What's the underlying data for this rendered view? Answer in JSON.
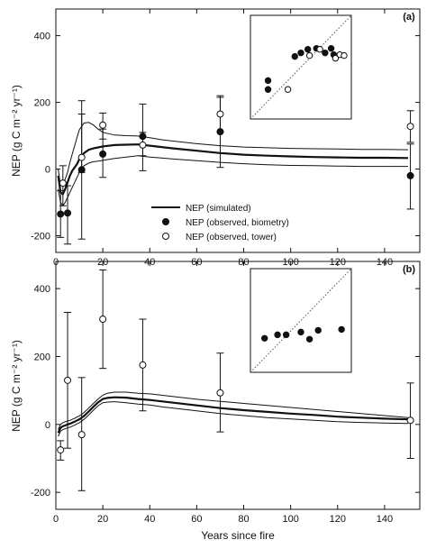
{
  "figure": {
    "xlabel": "Years since fire"
  },
  "chart_data": [
    {
      "type": "line",
      "panel_label": "(a)",
      "ylabel": "NEP (g C m⁻² yr⁻¹)",
      "xlim": [
        0,
        155
      ],
      "ylim": [
        -250,
        480
      ],
      "xticks": [
        0,
        20,
        40,
        60,
        80,
        100,
        120,
        140
      ],
      "yticks": [
        -200,
        0,
        200,
        400
      ],
      "legend": {
        "position": "lower-center",
        "entries": [
          {
            "label": "NEP (simulated)",
            "marker": "line"
          },
          {
            "label": "NEP (observed, biometry)",
            "marker": "filled-circle"
          },
          {
            "label": "NEP (observed, tower)",
            "marker": "open-circle"
          }
        ]
      },
      "series": [
        {
          "name": "NEP (simulated)",
          "style": "line",
          "x": [
            1,
            2,
            3,
            4,
            5,
            6,
            7,
            8,
            9,
            10,
            12,
            14,
            16,
            18,
            20,
            25,
            30,
            35,
            40,
            45,
            50,
            60,
            70,
            80,
            90,
            100,
            110,
            120,
            130,
            140,
            150
          ],
          "mean": [
            -20,
            -70,
            -75,
            -60,
            -40,
            -20,
            -5,
            5,
            15,
            30,
            48,
            58,
            62,
            65,
            68,
            72,
            73,
            74,
            70,
            66,
            62,
            55,
            48,
            43,
            40,
            38,
            36,
            35,
            34,
            34,
            33
          ],
          "upper": [
            0,
            -50,
            -50,
            -30,
            -10,
            20,
            45,
            70,
            95,
            118,
            138,
            140,
            132,
            120,
            110,
            102,
            100,
            99,
            94,
            88,
            84,
            76,
            70,
            66,
            64,
            62,
            61,
            60,
            59,
            59,
            58
          ],
          "lower": [
            -60,
            -100,
            -110,
            -100,
            -85,
            -70,
            -55,
            -40,
            -25,
            -10,
            10,
            18,
            22,
            24,
            26,
            32,
            36,
            40,
            36,
            33,
            30,
            25,
            20,
            16,
            13,
            11,
            10,
            9,
            8,
            8,
            8
          ]
        },
        {
          "name": "NEP (observed, biometry)",
          "style": "filled-circle",
          "points": [
            {
              "x": 2,
              "y": -135,
              "lo": -205,
              "hi": -65
            },
            {
              "x": 5,
              "y": -132,
              "lo": -225,
              "hi": -50
            },
            {
              "x": 11,
              "y": -2,
              "lo": -210,
              "hi": 165
            },
            {
              "x": 20,
              "y": 45,
              "lo": -25,
              "hi": 120
            },
            {
              "x": 37,
              "y": 98,
              "lo": -5,
              "hi": 195
            },
            {
              "x": 70,
              "y": 112,
              "lo": 5,
              "hi": 215
            },
            {
              "x": 151,
              "y": -20,
              "lo": -120,
              "hi": 75
            }
          ]
        },
        {
          "name": "NEP (observed, tower)",
          "style": "open-circle",
          "points": [
            {
              "x": 3,
              "y": -42,
              "lo": -110,
              "hi": 10
            },
            {
              "x": 11,
              "y": 35,
              "lo": -10,
              "hi": 205
            },
            {
              "x": 20,
              "y": 132,
              "lo": 90,
              "hi": 168
            },
            {
              "x": 37,
              "y": 72,
              "lo": 40,
              "hi": 110
            },
            {
              "x": 70,
              "y": 165,
              "lo": 110,
              "hi": 220
            },
            {
              "x": 151,
              "y": 128,
              "lo": 80,
              "hi": 175
            }
          ]
        }
      ],
      "inset": {
        "type": "scatter",
        "points_filled": [
          [
            0.12,
            0.25
          ],
          [
            0.12,
            0.35
          ],
          [
            0.43,
            0.62
          ],
          [
            0.5,
            0.66
          ],
          [
            0.58,
            0.7
          ],
          [
            0.68,
            0.71
          ],
          [
            0.78,
            0.66
          ],
          [
            0.85,
            0.71
          ],
          [
            0.88,
            0.64
          ]
        ],
        "points_open": [
          [
            0.35,
            0.25
          ],
          [
            0.6,
            0.63
          ],
          [
            0.72,
            0.7
          ],
          [
            0.9,
            0.6
          ],
          [
            0.95,
            0.64
          ],
          [
            1.0,
            0.63
          ]
        ]
      }
    },
    {
      "type": "line",
      "panel_label": "(b)",
      "ylabel": "NEP (g C m⁻² yr⁻¹)",
      "xlim": [
        0,
        155
      ],
      "ylim": [
        -250,
        480
      ],
      "xticks": [
        0,
        20,
        40,
        60,
        80,
        100,
        120,
        140
      ],
      "yticks": [
        -200,
        0,
        200,
        400
      ],
      "series": [
        {
          "name": "NEP (simulated)",
          "style": "line",
          "x": [
            1,
            2,
            3,
            4,
            5,
            6,
            7,
            8,
            9,
            10,
            12,
            14,
            16,
            18,
            20,
            22,
            25,
            30,
            35,
            40,
            45,
            50,
            60,
            70,
            80,
            90,
            100,
            110,
            120,
            130,
            140,
            150
          ],
          "mean": [
            -25,
            -10,
            -5,
            -3,
            0,
            2,
            5,
            8,
            12,
            15,
            25,
            38,
            52,
            65,
            75,
            78,
            80,
            79,
            75,
            72,
            68,
            64,
            56,
            48,
            42,
            37,
            32,
            28,
            23,
            20,
            17,
            15
          ],
          "upper": [
            -15,
            0,
            5,
            8,
            10,
            12,
            15,
            18,
            22,
            25,
            35,
            48,
            62,
            75,
            86,
            92,
            95,
            95,
            92,
            90,
            86,
            82,
            74,
            68,
            62,
            56,
            50,
            44,
            38,
            32,
            26,
            20
          ],
          "lower": [
            -35,
            -20,
            -15,
            -13,
            -10,
            -8,
            -5,
            -2,
            2,
            5,
            15,
            28,
            42,
            55,
            64,
            66,
            67,
            64,
            60,
            57,
            52,
            48,
            40,
            32,
            26,
            20,
            16,
            12,
            8,
            6,
            4,
            3
          ]
        },
        {
          "name": "NEP (observed, tower)",
          "style": "open-circle",
          "points": [
            {
              "x": 2,
              "y": -75,
              "lo": -105,
              "hi": -48
            },
            {
              "x": 5,
              "y": 130,
              "lo": -70,
              "hi": 330
            },
            {
              "x": 11,
              "y": -30,
              "lo": -195,
              "hi": 138
            },
            {
              "x": 20,
              "y": 310,
              "lo": 165,
              "hi": 455
            },
            {
              "x": 37,
              "y": 175,
              "lo": 40,
              "hi": 310
            },
            {
              "x": 70,
              "y": 93,
              "lo": -22,
              "hi": 210
            },
            {
              "x": 151,
              "y": 12,
              "lo": -100,
              "hi": 122
            }
          ]
        }
      ],
      "inset": {
        "type": "scatter",
        "points_filled": [
          [
            0.08,
            0.3
          ],
          [
            0.23,
            0.34
          ],
          [
            0.33,
            0.34
          ],
          [
            0.5,
            0.37
          ],
          [
            0.6,
            0.29
          ],
          [
            0.7,
            0.39
          ],
          [
            0.97,
            0.4
          ]
        ],
        "points_open": []
      }
    }
  ]
}
